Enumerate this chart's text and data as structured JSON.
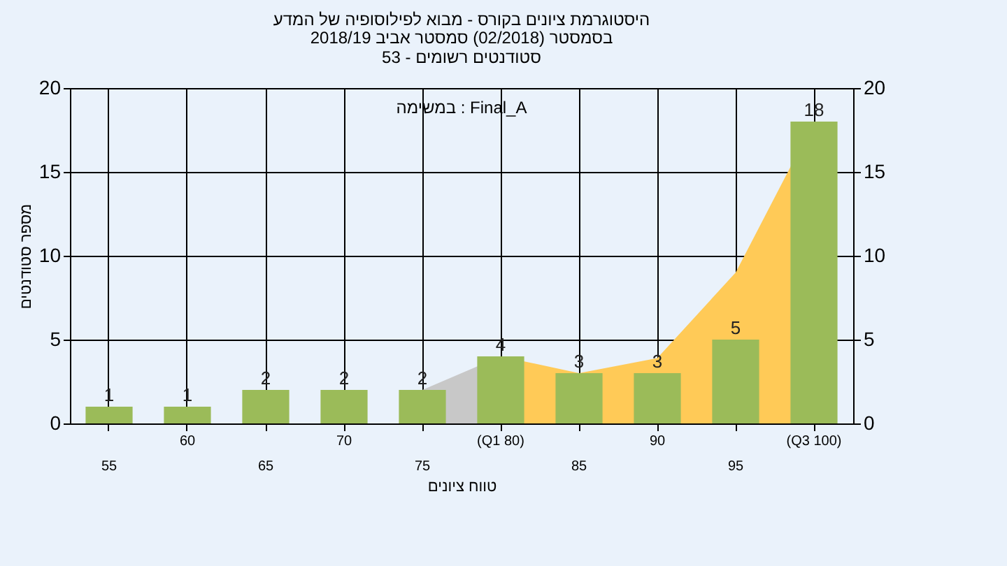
{
  "chart_data": {
    "type": "bar",
    "title": "היסטוגרמת ציונים בקורס - מבוא לפילוסופיה של המדע",
    "subtitle": "בסמסטר (02/2018) סמסטר אביב 2018/19\nסטודנטים רשומים - 53",
    "xlabel": "טווח ציונים",
    "ylabel": "מספר סטודנטים",
    "annotations": [
      "במשימה : Final_A"
    ],
    "categories": [
      "55",
      "60",
      "65",
      "70",
      "75",
      "(Q1 80)",
      "85",
      "90",
      "95",
      "(Q3 100)"
    ],
    "series": [
      {
        "type": "area",
        "color": "#c8c8c8",
        "values": [
          null,
          null,
          null,
          null,
          2,
          4,
          null,
          null,
          null,
          null
        ]
      },
      {
        "type": "area",
        "color": "#ffca57",
        "values": [
          null,
          null,
          null,
          null,
          null,
          4,
          3,
          3.9,
          9,
          18
        ]
      },
      {
        "color": "#9bbb59",
        "values": [
          1,
          1,
          2,
          2,
          2,
          4,
          3,
          3,
          5,
          18
        ],
        "data_labels": true
      }
    ],
    "ylim": [
      0,
      20
    ],
    "yticks": [
      0,
      5,
      10,
      15,
      20
    ],
    "y2lim": [
      0,
      20
    ],
    "y2ticks": [
      0,
      5,
      10,
      15,
      20
    ],
    "grid": true
  }
}
